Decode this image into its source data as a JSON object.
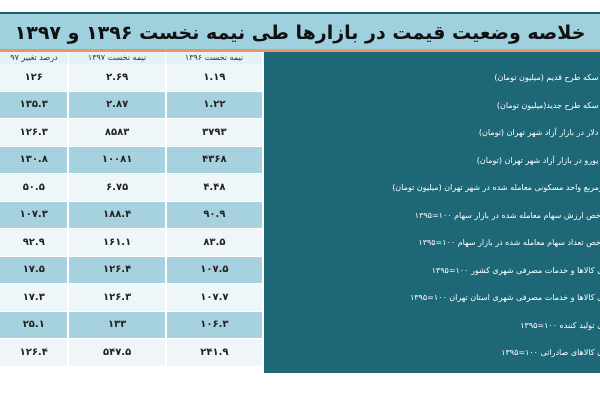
{
  "title": "خلاصه وضعیت قیمت در بازارها طی نیمه نخست ۱۳۹۶ و ۱۳۹۷",
  "headers": {
    "h1396": "نیمه نخست ۱۳۹۶",
    "h1397": "نیمه نخست ۱۳۹۷",
    "change": "درصد تغییر ۹۷"
  },
  "rows": [
    {
      "label": "رخ سکه طرح قدیم (میلیون تومان)",
      "v1396": "۱.۱۹",
      "v1397": "۲.۶۹",
      "change": "۱۲۶"
    },
    {
      "label": "رخ سکه طرح جدید(میلیون تومان)",
      "v1396": "۱.۲۲",
      "v1397": "۲.۸۷",
      "change": "۱۳۵.۳"
    },
    {
      "label": "رخ دلار در بازار آزاد شهر تهران (تومان)",
      "v1396": "۳۷۹۳",
      "v1397": "۸۵۸۳",
      "change": "۱۲۶.۳"
    },
    {
      "label": "رخ یورو در بازار آزاد شهر تهران (تومان)",
      "v1396": "۴۳۶۸",
      "v1397": "۱۰۰۸۱",
      "change": "۱۳۰.۸"
    },
    {
      "label": "مترمربع واحد مسکونی معامله شده در شهر تهران (میلیون تومان)",
      "v1396": "۴.۴۸",
      "v1397": "۶.۷۵",
      "change": "۵۰.۵"
    },
    {
      "label": "شاخص ارزش سهام معامله شده در بازار سهام ۱۰۰=۱۳۹۵",
      "v1396": "۹۰.۹",
      "v1397": "۱۸۸.۴",
      "change": "۱۰۷.۳"
    },
    {
      "label": "شاخص تعداد سهام معامله شده در بازار سهام ۱۰۰=۱۳۹۵",
      "v1396": "۸۳.۵",
      "v1397": "۱۶۱.۱",
      "change": "۹۲.۹"
    },
    {
      "label": "های کالاها و خدمات مصرفی شهری کشور ۱۰۰=۱۳۹۵",
      "v1396": "۱۰۷.۵",
      "v1397": "۱۲۶.۴",
      "change": "۱۷.۵"
    },
    {
      "label": "های کالاها و خدمات مصرفی شهری استان تهران ۱۰۰=۱۳۹۵",
      "v1396": "۱۰۷.۷",
      "v1397": "۱۲۶.۳",
      "change": "۱۷.۳"
    },
    {
      "label": "های تولید کننده ۱۰۰=۱۳۹۵",
      "v1396": "۱۰۶.۳",
      "v1397": "۱۳۳",
      "change": "۲۵.۱"
    },
    {
      "label": "های کالاهای صادراتی ۱۰۰=۱۳۹۵",
      "v1396": "۲۴۱.۹",
      "v1397": "۵۴۷.۵",
      "change": "۱۲۶.۴"
    }
  ],
  "colors": {
    "title_bg": "#9fd0de",
    "accent_line": "#e8956a",
    "label_bg": "#1d6776",
    "row_light": "#eef6f9",
    "row_blue": "#a6d2e0"
  }
}
